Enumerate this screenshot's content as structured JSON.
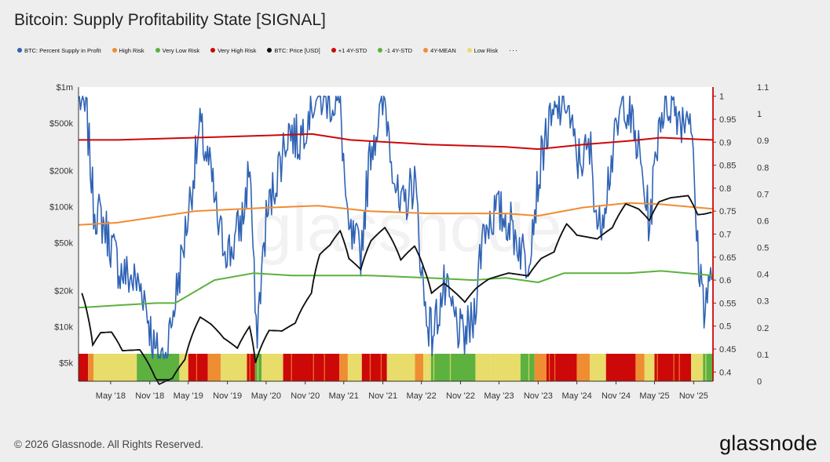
{
  "title": "Bitcoin: Supply Profitability State [SIGNAL]",
  "legend": [
    {
      "label": "BTC: Percent Supply in Profit",
      "color": "#2f63b5"
    },
    {
      "label": "High Risk",
      "color": "#ef8d32"
    },
    {
      "label": "Very Low Risk",
      "color": "#5cb13f"
    },
    {
      "label": "Very High Risk",
      "color": "#cc0808"
    },
    {
      "label": "BTC: Price [USD]",
      "color": "#111111"
    },
    {
      "label": "+1 4Y-STD",
      "color": "#cc0808"
    },
    {
      "label": "-1 4Y-STD",
      "color": "#5cb13f"
    },
    {
      "label": "4Y-MEAN",
      "color": "#ef8d32"
    },
    {
      "label": "Low Risk",
      "color": "#e8dc6a"
    }
  ],
  "legend_more": "···",
  "watermark": "glassnode",
  "copyright": "© 2026 Glassnode. All Rights Reserved.",
  "brand": "glassnode",
  "chart_data": {
    "type": "line",
    "x_range": [
      "2017-12-01",
      "2026-01-31"
    ],
    "x_ticks": [
      "May '18",
      "Nov '18",
      "May '19",
      "Nov '19",
      "May '20",
      "Nov '20",
      "May '21",
      "Nov '21",
      "May '22",
      "Nov '22",
      "May '23",
      "Nov '23",
      "May '24",
      "Nov '24",
      "May '25",
      "Nov '25"
    ],
    "y_left": {
      "scale": "log",
      "range": [
        3500,
        1000000
      ],
      "ticks": [
        "$1m",
        "$500k",
        "$200k",
        "$100k",
        "$50k",
        "$20k",
        "$10k",
        "$5k"
      ],
      "tick_values": [
        1000000,
        500000,
        200000,
        100000,
        50000,
        20000,
        10000,
        5000
      ]
    },
    "y_mid": {
      "range": [
        0.38,
        1.02
      ],
      "ticks": [
        "1",
        "0.95",
        "0.9",
        "0.85",
        "0.8",
        "0.75",
        "0.7",
        "0.65",
        "0.6",
        "0.55",
        "0.5",
        "0.45",
        "0.4"
      ],
      "tick_values": [
        1,
        0.95,
        0.9,
        0.85,
        0.8,
        0.75,
        0.7,
        0.65,
        0.6,
        0.55,
        0.5,
        0.45,
        0.4
      ]
    },
    "y_right": {
      "range": [
        0,
        1.1
      ],
      "ticks": [
        "1.1",
        "1",
        "0.9",
        "0.8",
        "0.7",
        "0.6",
        "0.5",
        "0.4",
        "0.3",
        "0.2",
        "0.1",
        "0"
      ],
      "tick_values": [
        1.1,
        1,
        0.9,
        0.8,
        0.7,
        0.6,
        0.5,
        0.4,
        0.3,
        0.2,
        0.1,
        0
      ]
    },
    "series": [
      {
        "name": "BTC: Percent Supply in Profit",
        "axis": "mid",
        "color": "#2f63b5",
        "dates": [
          "2017-12-05",
          "2018-01-10",
          "2018-02-10",
          "2018-04-01",
          "2018-06-15",
          "2018-08-15",
          "2018-10-01",
          "2018-11-25",
          "2019-01-15",
          "2019-04-01",
          "2019-06-25",
          "2019-08-15",
          "2019-09-25",
          "2019-11-15",
          "2020-01-15",
          "2020-02-15",
          "2020-03-15",
          "2020-05-01",
          "2020-07-01",
          "2020-08-15",
          "2020-10-01",
          "2020-12-01",
          "2021-02-01",
          "2021-04-15",
          "2021-05-20",
          "2021-07-20",
          "2021-09-05",
          "2021-11-10",
          "2022-01-20",
          "2022-03-30",
          "2022-05-15",
          "2022-06-20",
          "2022-08-15",
          "2022-11-10",
          "2022-12-30",
          "2023-02-15",
          "2023-04-15",
          "2023-06-15",
          "2023-09-10",
          "2023-12-01",
          "2024-03-10",
          "2024-05-01",
          "2024-07-05",
          "2024-08-10",
          "2024-10-10",
          "2024-12-10",
          "2025-02-15",
          "2025-04-08",
          "2025-05-25",
          "2025-07-15",
          "2025-09-10",
          "2025-10-15",
          "2025-11-20",
          "2025-12-20",
          "2026-01-25"
        ],
        "values": [
          1.0,
          0.95,
          0.76,
          0.72,
          0.62,
          0.6,
          0.58,
          0.44,
          0.43,
          0.65,
          0.93,
          0.83,
          0.7,
          0.66,
          0.74,
          0.86,
          0.47,
          0.73,
          0.85,
          0.93,
          0.9,
          0.99,
          1.0,
          0.98,
          0.7,
          0.66,
          0.89,
          0.99,
          0.74,
          0.82,
          0.55,
          0.48,
          0.58,
          0.47,
          0.51,
          0.71,
          0.75,
          0.73,
          0.64,
          0.91,
          1.0,
          0.86,
          0.88,
          0.7,
          0.86,
          1.0,
          0.88,
          0.72,
          0.96,
          0.99,
          0.95,
          0.98,
          0.66,
          0.55,
          0.6
        ]
      },
      {
        "name": "BTC: Price [USD]",
        "axis": "left",
        "color": "#111111",
        "dates": [
          "2017-12-17",
          "2018-01-15",
          "2018-02-06",
          "2018-03-15",
          "2018-05-05",
          "2018-06-25",
          "2018-09-15",
          "2018-11-25",
          "2018-12-15",
          "2019-02-15",
          "2019-04-15",
          "2019-06-26",
          "2019-08-15",
          "2019-10-15",
          "2019-12-18",
          "2020-02-13",
          "2020-03-12",
          "2020-05-15",
          "2020-07-15",
          "2020-09-15",
          "2020-11-30",
          "2021-01-08",
          "2021-02-25",
          "2021-04-14",
          "2021-05-25",
          "2021-07-20",
          "2021-09-06",
          "2021-11-10",
          "2022-01-24",
          "2022-03-30",
          "2022-05-15",
          "2022-06-18",
          "2022-08-15",
          "2022-11-21",
          "2023-01-15",
          "2023-03-15",
          "2023-06-15",
          "2023-09-15",
          "2023-11-15",
          "2024-01-15",
          "2024-03-14",
          "2024-05-01",
          "2024-08-05",
          "2024-10-15",
          "2024-12-17",
          "2025-02-15",
          "2025-04-07",
          "2025-05-22",
          "2025-07-15",
          "2025-10-06",
          "2025-11-20",
          "2025-12-20",
          "2026-01-25"
        ],
        "values": [
          19000,
          12000,
          7000,
          8900,
          9000,
          6300,
          6400,
          3800,
          3300,
          3700,
          5300,
          12000,
          10500,
          8000,
          6600,
          10000,
          5000,
          9300,
          9200,
          10700,
          19000,
          40000,
          48000,
          63000,
          37000,
          30000,
          52000,
          67000,
          36000,
          47000,
          30000,
          19000,
          23000,
          16000,
          21000,
          25000,
          28000,
          26500,
          37000,
          42000,
          72000,
          58000,
          54000,
          67000,
          106000,
          96000,
          77000,
          110000,
          119000,
          124000,
          86000,
          87000,
          90000
        ]
      },
      {
        "name": "+1 4Y-STD",
        "axis": "mid",
        "color": "#cc0808",
        "dates": [
          "2017-12-01",
          "2018-06-01",
          "2019-06-01",
          "2020-06-01",
          "2020-12-01",
          "2021-06-01",
          "2022-06-01",
          "2023-06-01",
          "2023-11-01",
          "2024-06-01",
          "2025-01-01",
          "2025-06-01",
          "2026-01-31"
        ],
        "values": [
          0.905,
          0.905,
          0.91,
          0.915,
          0.918,
          0.905,
          0.895,
          0.89,
          0.885,
          0.895,
          0.903,
          0.91,
          0.905
        ]
      },
      {
        "name": "4Y-MEAN",
        "axis": "mid",
        "color": "#ef8d32",
        "dates": [
          "2017-12-01",
          "2018-06-01",
          "2019-06-01",
          "2020-06-01",
          "2021-01-01",
          "2021-09-01",
          "2022-06-01",
          "2023-06-01",
          "2023-11-01",
          "2024-06-01",
          "2025-01-01",
          "2025-06-01",
          "2026-01-31"
        ],
        "values": [
          0.72,
          0.725,
          0.75,
          0.758,
          0.762,
          0.75,
          0.745,
          0.745,
          0.74,
          0.758,
          0.768,
          0.765,
          0.755
        ]
      },
      {
        "name": "-1 4Y-STD",
        "axis": "mid",
        "color": "#5cb13f",
        "dates": [
          "2017-12-01",
          "2018-06-01",
          "2018-12-01",
          "2019-03-01",
          "2019-09-01",
          "2020-03-01",
          "2020-09-01",
          "2021-09-01",
          "2022-06-01",
          "2023-01-01",
          "2023-06-01",
          "2023-11-01",
          "2024-03-01",
          "2025-01-01",
          "2025-06-01",
          "2026-01-31"
        ],
        "values": [
          0.54,
          0.545,
          0.55,
          0.55,
          0.6,
          0.615,
          0.61,
          0.61,
          0.605,
          0.6,
          0.605,
          0.595,
          0.615,
          0.615,
          0.62,
          0.61
        ]
      }
    ],
    "signal_band": {
      "name": "Supply Profitability State",
      "colors": {
        "very_high": "#cc0808",
        "high": "#ef8d32",
        "low": "#e8dc6a",
        "very_low": "#5cb13f"
      },
      "segments": [
        [
          "2017-12-01",
          "2018-01-15",
          "very_high"
        ],
        [
          "2018-01-15",
          "2018-02-10",
          "high"
        ],
        [
          "2018-02-10",
          "2018-09-01",
          "low"
        ],
        [
          "2018-09-01",
          "2019-03-20",
          "very_low"
        ],
        [
          "2019-03-20",
          "2019-05-01",
          "low"
        ],
        [
          "2019-05-01",
          "2019-08-01",
          "very_high"
        ],
        [
          "2019-08-01",
          "2019-10-01",
          "high"
        ],
        [
          "2019-10-01",
          "2020-02-01",
          "low"
        ],
        [
          "2020-02-01",
          "2020-03-10",
          "very_high"
        ],
        [
          "2020-03-10",
          "2020-04-10",
          "very_low"
        ],
        [
          "2020-04-10",
          "2020-07-20",
          "low"
        ],
        [
          "2020-07-20",
          "2021-04-10",
          "very_high"
        ],
        [
          "2021-04-10",
          "2021-05-20",
          "high"
        ],
        [
          "2021-05-20",
          "2021-07-25",
          "low"
        ],
        [
          "2021-07-25",
          "2021-11-20",
          "very_high"
        ],
        [
          "2021-11-20",
          "2022-04-01",
          "low"
        ],
        [
          "2022-04-01",
          "2022-05-10",
          "high"
        ],
        [
          "2022-05-10",
          "2022-06-15",
          "low"
        ],
        [
          "2022-06-15",
          "2023-01-10",
          "very_low"
        ],
        [
          "2023-01-10",
          "2023-03-20",
          "low"
        ],
        [
          "2023-03-20",
          "2023-08-10",
          "low"
        ],
        [
          "2023-08-10",
          "2023-10-15",
          "very_low"
        ],
        [
          "2023-10-15",
          "2023-12-10",
          "high"
        ],
        [
          "2023-12-10",
          "2024-05-01",
          "very_high"
        ],
        [
          "2024-05-01",
          "2024-07-01",
          "high"
        ],
        [
          "2024-07-01",
          "2024-09-15",
          "low"
        ],
        [
          "2024-09-15",
          "2025-02-01",
          "very_high"
        ],
        [
          "2025-02-01",
          "2025-03-15",
          "high"
        ],
        [
          "2025-03-15",
          "2025-05-01",
          "low"
        ],
        [
          "2025-05-01",
          "2025-10-20",
          "very_high"
        ],
        [
          "2025-10-20",
          "2025-12-15",
          "low"
        ],
        [
          "2025-12-15",
          "2026-01-31",
          "very_low"
        ]
      ]
    }
  }
}
